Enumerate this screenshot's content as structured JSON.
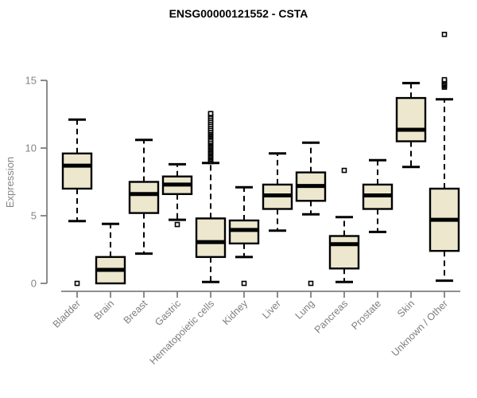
{
  "chart_data": {
    "type": "boxplot",
    "title": "ENSG00000121552 - CSTA",
    "xlabel": "",
    "ylabel": "Expression",
    "yticks": [
      0,
      5,
      10,
      15
    ],
    "ylim": [
      0,
      15
    ],
    "grid": false,
    "legend": null,
    "categories": [
      "Bladder",
      "Brain",
      "Breast",
      "Gastric",
      "Hematopoietic cells",
      "Kidney",
      "Liver",
      "Lung",
      "Pancreas",
      "Prostate",
      "Skin",
      "Unknown / Other"
    ],
    "series": [
      {
        "label": "Bladder",
        "low": 4.6,
        "q1": 7.0,
        "median": 8.7,
        "q3": 9.6,
        "high": 12.1,
        "outliers": [
          0
        ]
      },
      {
        "label": "Brain",
        "low": null,
        "q1": 0.0,
        "median": 1.0,
        "q3": 1.95,
        "high": 4.4,
        "outliers": []
      },
      {
        "label": "Breast",
        "low": 2.2,
        "q1": 5.2,
        "median": 6.6,
        "q3": 7.5,
        "high": 10.6,
        "outliers": []
      },
      {
        "label": "Gastric",
        "low": 4.7,
        "q1": 6.6,
        "median": 7.3,
        "q3": 7.9,
        "high": 8.8,
        "outliers": [
          4.35
        ]
      },
      {
        "label": "Hematopoietic cells",
        "low": 0.1,
        "q1": 1.95,
        "median": 3.05,
        "q3": 4.8,
        "high": 8.9,
        "outliers": [
          9.0,
          9.1,
          9.2,
          9.3,
          9.4,
          9.5,
          9.6,
          9.7,
          9.8,
          9.9,
          10.0,
          10.1,
          10.2,
          10.3,
          10.4,
          10.5,
          10.65,
          10.8,
          10.9,
          11.0,
          11.1,
          11.2,
          11.3,
          11.45,
          11.6,
          11.75,
          11.9,
          12.05,
          12.2,
          12.35,
          12.5,
          12.55
        ]
      },
      {
        "label": "Kidney",
        "low": 1.95,
        "q1": 2.95,
        "median": 3.95,
        "q3": 4.65,
        "high": 7.1,
        "outliers": [
          0
        ]
      },
      {
        "label": "Liver",
        "low": 3.9,
        "q1": 5.5,
        "median": 6.5,
        "q3": 7.3,
        "high": 9.6,
        "outliers": []
      },
      {
        "label": "Lung",
        "low": 5.1,
        "q1": 6.1,
        "median": 7.2,
        "q3": 8.2,
        "high": 10.4,
        "outliers": [
          0
        ]
      },
      {
        "label": "Pancreas",
        "low": 0.1,
        "q1": 1.1,
        "median": 2.9,
        "q3": 3.5,
        "high": 4.9,
        "outliers": [
          8.35
        ]
      },
      {
        "label": "Prostate",
        "low": 3.8,
        "q1": 5.5,
        "median": 6.5,
        "q3": 7.3,
        "high": 9.1,
        "outliers": []
      },
      {
        "label": "Skin",
        "low": 8.6,
        "q1": 10.5,
        "median": 11.35,
        "q3": 13.7,
        "high": 14.8,
        "outliers": []
      },
      {
        "label": "Unknown / Other",
        "low": 0.2,
        "q1": 2.4,
        "median": 4.7,
        "q3": 7.0,
        "high": 13.6,
        "outliers": [
          14.5,
          14.6,
          14.7,
          14.75,
          14.85,
          14.95,
          15.05,
          18.4
        ]
      }
    ],
    "colors": {
      "box_fill": "#ECE7CD",
      "box_border": "#000000",
      "median": "#000000",
      "whisker": "#000000",
      "outlier_stroke": "#000000",
      "outlier_fill": "#ffffff",
      "axis": "#7f7f7f",
      "tick_text": "#848484",
      "title_text": "#000000",
      "background": "#ffffff"
    }
  }
}
